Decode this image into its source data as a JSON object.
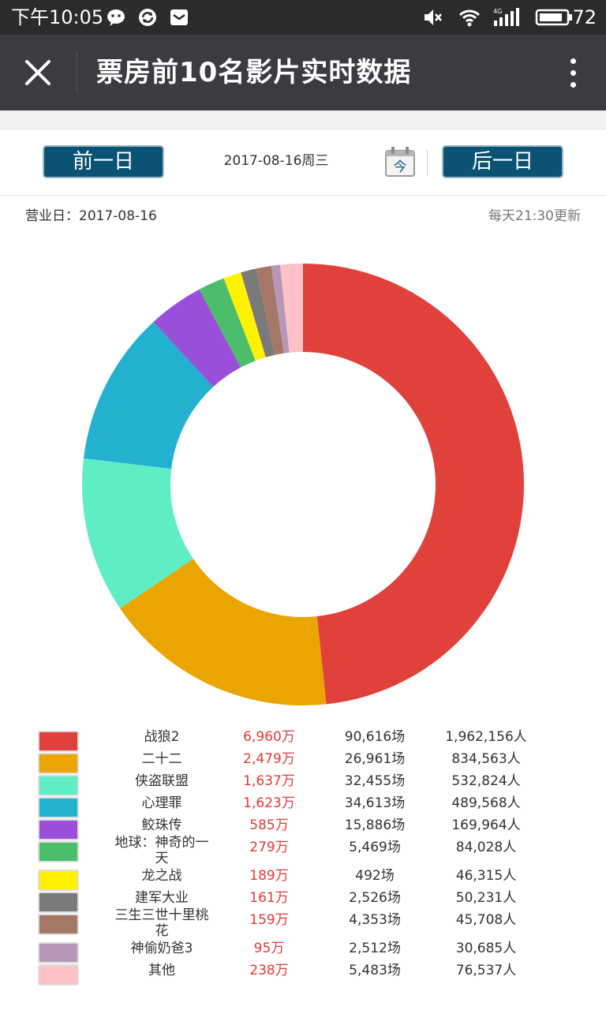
{
  "status_bar": {
    "time": "下午10:05",
    "battery": "72"
  },
  "header": {
    "title": "票房前10名影片实时数据"
  },
  "date_nav": {
    "prev_label": "前一日",
    "next_label": "后一日",
    "current_date": "2017-08-16周三",
    "today_icon_label": "今"
  },
  "info": {
    "business_day": "营业日：2017-08-16",
    "update_note": "每天21:30更新"
  },
  "chart_data": {
    "type": "pie",
    "style": "donut",
    "legend_placement": "bottom",
    "categories": [
      "战狼2",
      "二十二",
      "侠盗联盟",
      "心理罪",
      "鲛珠传",
      "地球：神奇的一天",
      "龙之战",
      "建军大业",
      "三生三世十里桃花",
      "神偷奶爸3",
      "其他"
    ],
    "values": [
      6960,
      2479,
      1637,
      1623,
      585,
      279,
      189,
      161,
      159,
      95,
      238
    ],
    "colors": [
      "#e0413b",
      "#eba500",
      "#5fedc6",
      "#22b2cf",
      "#9a4fdb",
      "#4cbd6b",
      "#fff200",
      "#7a7a7a",
      "#a57865",
      "#b697b8",
      "#ffc0c6"
    ]
  },
  "rows": [
    {
      "name": "战狼2",
      "box": "6,960万",
      "shows": "90,616场",
      "people": "1,962,156人"
    },
    {
      "name": "二十二",
      "box": "2,479万",
      "shows": "26,961场",
      "people": "834,563人"
    },
    {
      "name": "侠盗联盟",
      "box": "1,637万",
      "shows": "32,455场",
      "people": "532,824人"
    },
    {
      "name": "心理罪",
      "box": "1,623万",
      "shows": "34,613场",
      "people": "489,568人"
    },
    {
      "name": "鲛珠传",
      "box": "585万",
      "shows": "15,886场",
      "people": "169,964人"
    },
    {
      "name": "地球：神奇的一天",
      "box": "279万",
      "shows": "5,469场",
      "people": "84,028人"
    },
    {
      "name": "龙之战",
      "box": "189万",
      "shows": "492场",
      "people": "46,315人"
    },
    {
      "name": "建军大业",
      "box": "161万",
      "shows": "2,526场",
      "people": "50,231人"
    },
    {
      "name": "三生三世十里桃花",
      "box": "159万",
      "shows": "4,353场",
      "people": "45,708人"
    },
    {
      "name": "神偷奶爸3",
      "box": "95万",
      "shows": "2,512场",
      "people": "30,685人"
    },
    {
      "name": "其他",
      "box": "238万",
      "shows": "5,483场",
      "people": "76,537人"
    }
  ]
}
